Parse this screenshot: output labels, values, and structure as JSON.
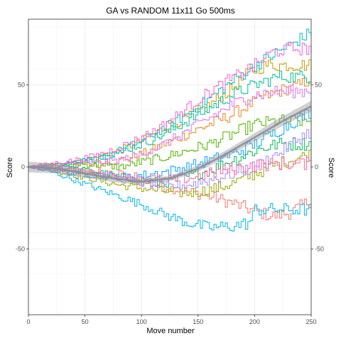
{
  "chart_data": {
    "type": "line",
    "title": "GA vs RANDOM 11x11 Go 500ms",
    "xlabel": "Move number",
    "ylabel": "Score",
    "ylabel_right": "Score",
    "xlim": [
      0,
      250
    ],
    "ylim": [
      -90,
      90
    ],
    "x_ticks": [
      0,
      50,
      100,
      150,
      200,
      250
    ],
    "y_ticks": [
      -50,
      0,
      50
    ],
    "grid": true,
    "legend": "none",
    "series": [
      {
        "color": "#F8766D",
        "points": [
          [
            0,
            0
          ],
          [
            20,
            -1
          ],
          [
            40,
            -2
          ],
          [
            60,
            -4
          ],
          [
            80,
            -7
          ],
          [
            100,
            -9
          ],
          [
            120,
            -12
          ],
          [
            140,
            -15
          ],
          [
            160,
            -18
          ],
          [
            180,
            -22
          ],
          [
            200,
            -27
          ],
          [
            215,
            -30
          ],
          [
            230,
            -28
          ],
          [
            245,
            -22
          ],
          [
            250,
            -20
          ]
        ]
      },
      {
        "color": "#E7861B",
        "points": [
          [
            0,
            0
          ],
          [
            20,
            0
          ],
          [
            40,
            1
          ],
          [
            60,
            2
          ],
          [
            80,
            4
          ],
          [
            100,
            8
          ],
          [
            120,
            14
          ],
          [
            140,
            20
          ],
          [
            160,
            26
          ],
          [
            180,
            32
          ],
          [
            200,
            40
          ],
          [
            220,
            46
          ],
          [
            240,
            50
          ],
          [
            250,
            54
          ]
        ]
      },
      {
        "color": "#C49A00",
        "points": [
          [
            0,
            0
          ],
          [
            20,
            1
          ],
          [
            40,
            3
          ],
          [
            60,
            6
          ],
          [
            80,
            10
          ],
          [
            100,
            16
          ],
          [
            120,
            24
          ],
          [
            140,
            30
          ],
          [
            160,
            38
          ],
          [
            180,
            48
          ],
          [
            195,
            58
          ],
          [
            210,
            62
          ],
          [
            230,
            62
          ],
          [
            250,
            62
          ]
        ]
      },
      {
        "color": "#99A800",
        "points": [
          [
            0,
            0
          ],
          [
            20,
            -2
          ],
          [
            40,
            -5
          ],
          [
            60,
            -8
          ],
          [
            80,
            -11
          ],
          [
            100,
            -13
          ],
          [
            120,
            -15
          ],
          [
            140,
            -16
          ],
          [
            160,
            -14
          ],
          [
            180,
            -10
          ],
          [
            200,
            -4
          ],
          [
            220,
            2
          ],
          [
            240,
            6
          ],
          [
            250,
            8
          ]
        ]
      },
      {
        "color": "#53B400",
        "points": [
          [
            0,
            0
          ],
          [
            20,
            1
          ],
          [
            40,
            2
          ],
          [
            60,
            1
          ],
          [
            80,
            0
          ],
          [
            100,
            3
          ],
          [
            120,
            6
          ],
          [
            140,
            10
          ],
          [
            160,
            14
          ],
          [
            180,
            20
          ],
          [
            200,
            26
          ],
          [
            220,
            28
          ],
          [
            240,
            28
          ],
          [
            250,
            28
          ]
        ]
      },
      {
        "color": "#00BC56",
        "points": [
          [
            0,
            0
          ],
          [
            20,
            -1
          ],
          [
            40,
            -1
          ],
          [
            60,
            -3
          ],
          [
            80,
            -6
          ],
          [
            100,
            -8
          ],
          [
            120,
            -10
          ],
          [
            140,
            -6
          ],
          [
            160,
            -2
          ],
          [
            180,
            4
          ],
          [
            200,
            10
          ],
          [
            220,
            14
          ],
          [
            240,
            14
          ],
          [
            250,
            14
          ]
        ]
      },
      {
        "color": "#00C094",
        "points": [
          [
            0,
            0
          ],
          [
            20,
            1
          ],
          [
            40,
            3
          ],
          [
            60,
            5
          ],
          [
            80,
            9
          ],
          [
            100,
            14
          ],
          [
            120,
            20
          ],
          [
            140,
            28
          ],
          [
            160,
            36
          ],
          [
            180,
            44
          ],
          [
            200,
            50
          ],
          [
            220,
            55
          ],
          [
            240,
            55
          ],
          [
            250,
            55
          ]
        ]
      },
      {
        "color": "#00BFC4",
        "points": [
          [
            0,
            0
          ],
          [
            20,
            0
          ],
          [
            40,
            2
          ],
          [
            60,
            5
          ],
          [
            80,
            10
          ],
          [
            100,
            16
          ],
          [
            120,
            24
          ],
          [
            140,
            32
          ],
          [
            160,
            42
          ],
          [
            180,
            52
          ],
          [
            200,
            62
          ],
          [
            220,
            70
          ],
          [
            240,
            78
          ],
          [
            250,
            82
          ]
        ]
      },
      {
        "color": "#00B6EB",
        "points": [
          [
            0,
            0
          ],
          [
            20,
            -3
          ],
          [
            40,
            -8
          ],
          [
            60,
            -13
          ],
          [
            80,
            -18
          ],
          [
            100,
            -23
          ],
          [
            120,
            -29
          ],
          [
            140,
            -34
          ],
          [
            160,
            -37
          ],
          [
            180,
            -36
          ],
          [
            195,
            -34
          ],
          [
            200,
            -26
          ],
          [
            220,
            -26
          ],
          [
            250,
            -26
          ]
        ]
      },
      {
        "color": "#06A4FF",
        "points": [
          [
            0,
            0
          ],
          [
            20,
            -2
          ],
          [
            40,
            -4
          ],
          [
            60,
            -5
          ],
          [
            80,
            -6
          ],
          [
            100,
            -5
          ],
          [
            120,
            -3
          ],
          [
            140,
            0
          ],
          [
            160,
            4
          ],
          [
            180,
            8
          ],
          [
            200,
            14
          ],
          [
            220,
            22
          ],
          [
            240,
            30
          ],
          [
            250,
            34
          ]
        ]
      },
      {
        "color": "#A58AFF",
        "points": [
          [
            0,
            0
          ],
          [
            20,
            -1
          ],
          [
            40,
            -2
          ],
          [
            60,
            -4
          ],
          [
            80,
            -7
          ],
          [
            100,
            -10
          ],
          [
            120,
            -12
          ],
          [
            140,
            -11
          ],
          [
            160,
            -8
          ],
          [
            180,
            -4
          ],
          [
            200,
            0
          ],
          [
            220,
            8
          ],
          [
            240,
            18
          ],
          [
            250,
            22
          ]
        ]
      },
      {
        "color": "#DF70F8",
        "points": [
          [
            0,
            0
          ],
          [
            20,
            1
          ],
          [
            40,
            2
          ],
          [
            60,
            3
          ],
          [
            80,
            4
          ],
          [
            100,
            8
          ],
          [
            120,
            14
          ],
          [
            140,
            22
          ],
          [
            160,
            30
          ],
          [
            180,
            38
          ],
          [
            200,
            44
          ],
          [
            220,
            46
          ],
          [
            240,
            46
          ],
          [
            250,
            47
          ]
        ]
      },
      {
        "color": "#FB61D7",
        "points": [
          [
            0,
            0
          ],
          [
            20,
            2
          ],
          [
            40,
            4
          ],
          [
            60,
            7
          ],
          [
            80,
            12
          ],
          [
            100,
            18
          ],
          [
            120,
            26
          ],
          [
            140,
            36
          ],
          [
            160,
            46
          ],
          [
            180,
            54
          ],
          [
            200,
            62
          ],
          [
            215,
            70
          ],
          [
            230,
            72
          ],
          [
            250,
            72
          ]
        ]
      },
      {
        "color": "#FF66A8",
        "points": [
          [
            0,
            0
          ],
          [
            20,
            -1
          ],
          [
            40,
            -2
          ],
          [
            60,
            -3
          ],
          [
            80,
            -4
          ],
          [
            100,
            -6
          ],
          [
            120,
            -8
          ],
          [
            140,
            -7
          ],
          [
            160,
            -4
          ],
          [
            180,
            -1
          ],
          [
            200,
            1
          ],
          [
            220,
            2
          ],
          [
            240,
            2
          ],
          [
            250,
            2
          ]
        ]
      }
    ],
    "smooth": {
      "color": "#8B8B9B",
      "points": [
        [
          0,
          0
        ],
        [
          25,
          -1
        ],
        [
          50,
          -4
        ],
        [
          75,
          -7
        ],
        [
          100,
          -9
        ],
        [
          125,
          -7
        ],
        [
          150,
          -1
        ],
        [
          175,
          8
        ],
        [
          200,
          18
        ],
        [
          225,
          28
        ],
        [
          250,
          37
        ]
      ]
    }
  }
}
